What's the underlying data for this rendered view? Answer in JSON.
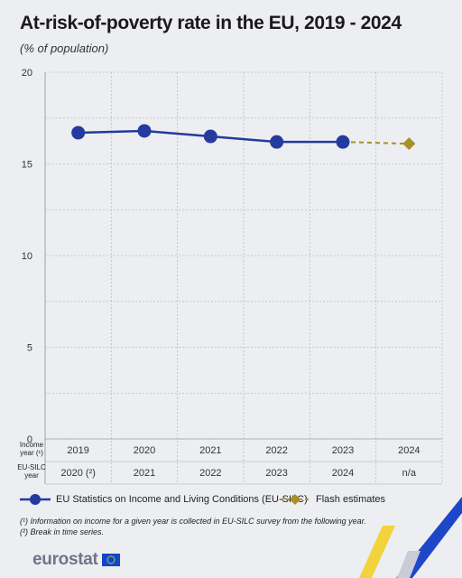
{
  "chart_data": {
    "type": "line",
    "title": "At-risk-of-poverty rate in the EU, 2019 - 2024",
    "subtitle": "(% of population)",
    "categories": [
      "2019",
      "2020",
      "2021",
      "2022",
      "2023",
      "2024"
    ],
    "ylim": [
      0,
      20
    ],
    "yticks": [
      "0",
      "5",
      "10",
      "15",
      "20"
    ],
    "grid": true,
    "legend_position": "bottom",
    "series": [
      {
        "name": "EU Statistics on Income and Living Conditions (EU-SILC)",
        "color": "#243a9e",
        "marker": "circle",
        "values": [
          16.7,
          16.8,
          16.5,
          16.2,
          16.2,
          null
        ]
      },
      {
        "name": "Flash estimates",
        "color": "#a89028",
        "marker": "diamond",
        "dashed": true,
        "values": [
          null,
          null,
          null,
          null,
          16.2,
          16.1
        ]
      }
    ],
    "x_rows": [
      {
        "label_lines": [
          "Income",
          "year (¹)"
        ],
        "values": [
          "2019",
          "2020",
          "2021",
          "2022",
          "2023",
          "2024"
        ]
      },
      {
        "label_lines": [
          "EU-SILC",
          "year"
        ],
        "values": [
          "2020 (²)",
          "2021",
          "2022",
          "2023",
          "2024",
          "n/a"
        ]
      }
    ]
  },
  "notes": [
    "(¹) Information on income for a given year is collected in EU-SILC survey from the following year.",
    "(²) Break in time series."
  ],
  "footer": {
    "logo_text": "eurostat",
    "flag_icon": "eu-flag-icon",
    "flag_color": "#0e47cb",
    "star_color": "#ffdd00"
  }
}
